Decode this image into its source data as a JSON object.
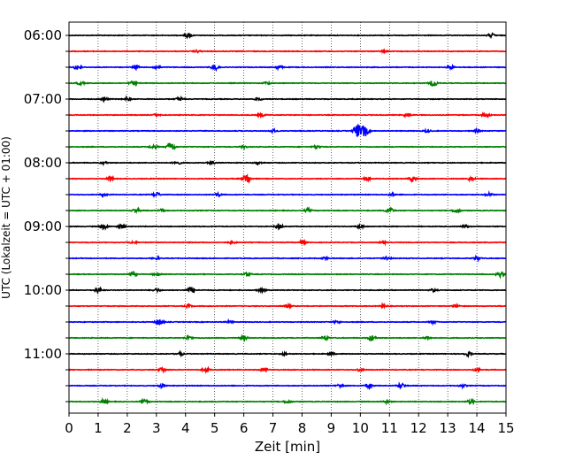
{
  "chart_data": {
    "type": "line",
    "xlabel": "Zeit  [min]",
    "ylabel": "UTC (Lokalzeit = UTC + 01:00)",
    "xlim": [
      0,
      15
    ],
    "x_ticks": [
      "0",
      "1",
      "2",
      "3",
      "4",
      "5",
      "6",
      "7",
      "8",
      "9",
      "10",
      "11",
      "12",
      "13",
      "14",
      "15"
    ],
    "y_tick_labels": [
      "06:00",
      "07:00",
      "08:00",
      "09:00",
      "10:00",
      "11:00"
    ],
    "grid": "vertical dotted",
    "colors": [
      "#000000",
      "#ff0000",
      "#0000ff",
      "#008000"
    ],
    "traces": [
      {
        "start": "06:00",
        "color": "#000000",
        "events": [
          [
            4.1,
            0.35
          ],
          [
            14.5,
            0.3
          ]
        ]
      },
      {
        "start": "06:15",
        "color": "#ff0000",
        "events": [
          [
            4.4,
            0.15
          ],
          [
            10.8,
            0.15
          ]
        ]
      },
      {
        "start": "06:30",
        "color": "#0000ff",
        "events": [
          [
            0.3,
            0.5
          ],
          [
            2.3,
            0.3
          ],
          [
            3.0,
            0.3
          ],
          [
            5.0,
            0.45
          ],
          [
            7.2,
            0.25
          ],
          [
            13.1,
            0.25
          ]
        ]
      },
      {
        "start": "06:45",
        "color": "#008000",
        "events": [
          [
            0.4,
            0.25
          ],
          [
            2.2,
            0.3
          ],
          [
            6.8,
            0.2
          ],
          [
            12.5,
            0.5
          ]
        ]
      },
      {
        "start": "07:00",
        "color": "#000000",
        "events": [
          [
            1.2,
            0.3
          ],
          [
            2.0,
            0.25
          ],
          [
            3.8,
            0.3
          ],
          [
            6.5,
            0.2
          ]
        ]
      },
      {
        "start": "07:15",
        "color": "#ff0000",
        "events": [
          [
            3.0,
            0.2
          ],
          [
            6.6,
            0.25
          ],
          [
            11.6,
            0.3
          ],
          [
            14.3,
            0.4
          ]
        ]
      },
      {
        "start": "07:30",
        "color": "#0000ff",
        "events": [
          [
            7.0,
            0.25
          ],
          [
            9.9,
            1.1
          ],
          [
            10.15,
            0.9
          ],
          [
            12.3,
            0.2
          ],
          [
            14.0,
            0.2
          ]
        ]
      },
      {
        "start": "07:45",
        "color": "#008000",
        "events": [
          [
            2.9,
            0.3
          ],
          [
            3.5,
            0.75
          ],
          [
            6.0,
            0.2
          ],
          [
            8.5,
            0.25
          ]
        ]
      },
      {
        "start": "08:00",
        "color": "#000000",
        "events": [
          [
            1.2,
            0.2
          ],
          [
            3.7,
            0.3
          ],
          [
            4.9,
            0.25
          ],
          [
            6.5,
            0.2
          ]
        ]
      },
      {
        "start": "08:15",
        "color": "#ff0000",
        "events": [
          [
            1.4,
            0.35
          ],
          [
            6.1,
            0.85
          ],
          [
            10.2,
            0.3
          ],
          [
            11.8,
            0.45
          ],
          [
            13.8,
            0.3
          ]
        ]
      },
      {
        "start": "08:30",
        "color": "#0000ff",
        "events": [
          [
            1.2,
            0.2
          ],
          [
            3.0,
            0.35
          ],
          [
            5.1,
            0.25
          ],
          [
            11.1,
            0.2
          ],
          [
            14.4,
            0.25
          ]
        ]
      },
      {
        "start": "08:45",
        "color": "#008000",
        "events": [
          [
            2.3,
            0.3
          ],
          [
            3.2,
            0.25
          ],
          [
            8.2,
            0.25
          ],
          [
            11.0,
            0.45
          ],
          [
            13.3,
            0.35
          ]
        ]
      },
      {
        "start": "09:00",
        "color": "#000000",
        "events": [
          [
            1.2,
            0.4
          ],
          [
            1.8,
            0.35
          ],
          [
            7.2,
            0.45
          ],
          [
            10.0,
            0.3
          ],
          [
            13.6,
            0.2
          ]
        ]
      },
      {
        "start": "09:15",
        "color": "#ff0000",
        "events": [
          [
            2.2,
            0.2
          ],
          [
            5.6,
            0.2
          ],
          [
            8.0,
            0.25
          ],
          [
            10.8,
            0.2
          ]
        ]
      },
      {
        "start": "09:30",
        "color": "#0000ff",
        "events": [
          [
            3.0,
            0.2
          ],
          [
            8.8,
            0.2
          ],
          [
            10.9,
            0.3
          ],
          [
            14.0,
            0.25
          ]
        ]
      },
      {
        "start": "09:45",
        "color": "#008000",
        "events": [
          [
            2.2,
            0.35
          ],
          [
            3.0,
            0.25
          ],
          [
            6.1,
            0.25
          ],
          [
            14.8,
            0.45
          ]
        ]
      },
      {
        "start": "10:00",
        "color": "#000000",
        "events": [
          [
            1.0,
            0.35
          ],
          [
            3.0,
            0.25
          ],
          [
            4.2,
            0.5
          ],
          [
            6.6,
            0.3
          ],
          [
            12.5,
            0.2
          ]
        ]
      },
      {
        "start": "10:15",
        "color": "#ff0000",
        "events": [
          [
            4.1,
            0.25
          ],
          [
            7.5,
            0.25
          ],
          [
            10.8,
            0.2
          ],
          [
            13.3,
            0.2
          ]
        ]
      },
      {
        "start": "10:30",
        "color": "#0000ff",
        "events": [
          [
            3.1,
            0.5
          ],
          [
            5.5,
            0.2
          ],
          [
            9.2,
            0.2
          ],
          [
            12.5,
            0.2
          ]
        ]
      },
      {
        "start": "10:45",
        "color": "#008000",
        "events": [
          [
            4.1,
            0.35
          ],
          [
            6.0,
            0.35
          ],
          [
            8.8,
            0.3
          ],
          [
            10.4,
            0.45
          ],
          [
            12.3,
            0.25
          ]
        ]
      },
      {
        "start": "11:00",
        "color": "#000000",
        "events": [
          [
            3.8,
            0.25
          ],
          [
            7.4,
            0.2
          ],
          [
            9.0,
            0.2
          ],
          [
            13.7,
            0.35
          ]
        ]
      },
      {
        "start": "11:15",
        "color": "#ff0000",
        "events": [
          [
            3.2,
            0.35
          ],
          [
            4.7,
            0.3
          ],
          [
            6.7,
            0.3
          ],
          [
            10.0,
            0.2
          ],
          [
            14.0,
            0.25
          ]
        ]
      },
      {
        "start": "11:30",
        "color": "#0000ff",
        "events": [
          [
            3.2,
            0.3
          ],
          [
            9.3,
            0.25
          ],
          [
            10.3,
            0.35
          ],
          [
            11.4,
            0.4
          ],
          [
            13.5,
            0.2
          ]
        ]
      },
      {
        "start": "11:45",
        "color": "#008000",
        "events": [
          [
            1.2,
            0.3
          ],
          [
            2.6,
            0.25
          ],
          [
            7.5,
            0.25
          ],
          [
            10.9,
            0.2
          ],
          [
            13.8,
            0.3
          ]
        ]
      }
    ]
  }
}
